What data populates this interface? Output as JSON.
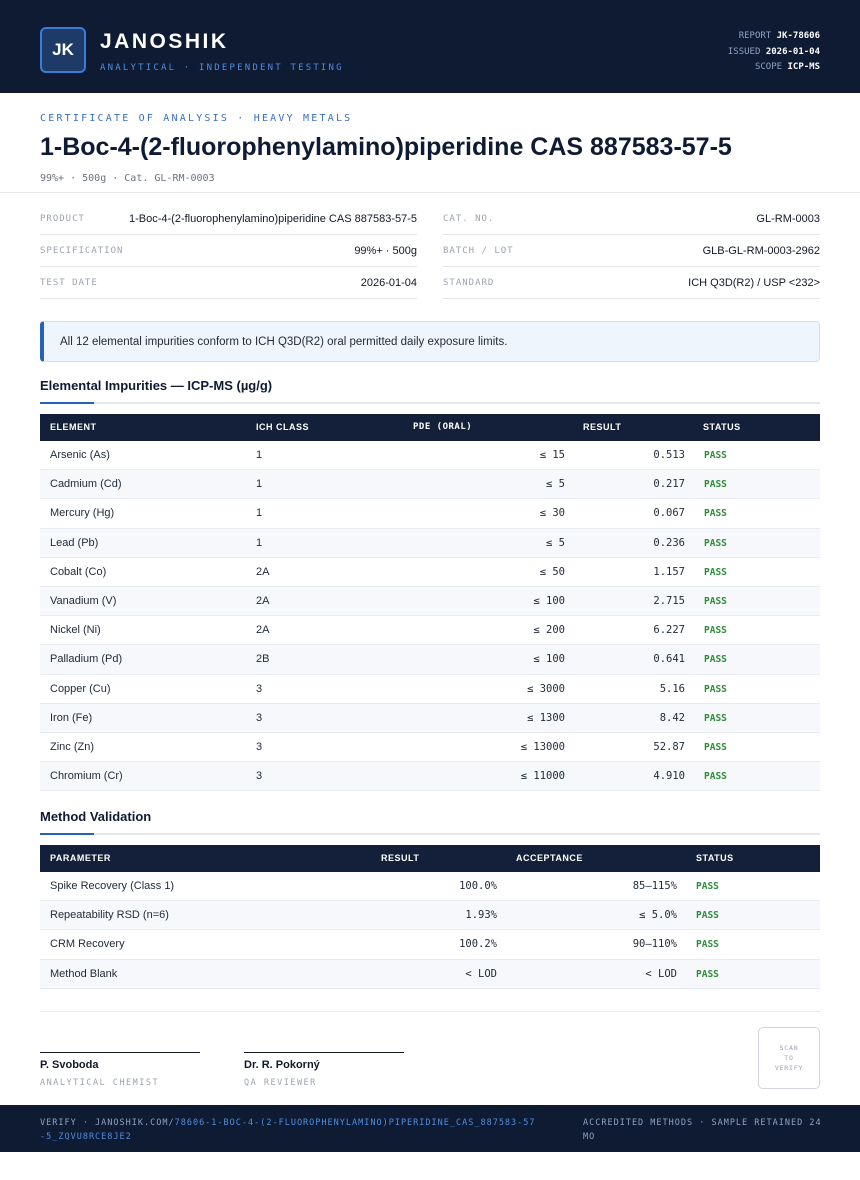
{
  "header": {
    "logo_text": "JK",
    "brand": "JANOSHIK",
    "tagline": "ANALYTICAL · INDEPENDENT TESTING",
    "report_label": "REPORT",
    "report_value": "JK-78606",
    "issued_label": "ISSUED",
    "issued_value": "2026-01-04",
    "scope_label": "SCOPE",
    "scope_value": "ICP-MS"
  },
  "title_block": {
    "kicker": "CERTIFICATE OF ANALYSIS · HEAVY METALS",
    "title": "1-Boc-4-(2-fluorophenylamino)piperidine CAS 887583-57-5",
    "subtitle": "99%+ · 500g  ·  Cat. GL-RM-0003"
  },
  "info": {
    "product_label": "PRODUCT",
    "product_value": "1-Boc-4-(2-fluorophenylamino)piperidine CAS 887583-57-5",
    "spec_label": "SPECIFICATION",
    "spec_value": "99%+ · 500g",
    "date_label": "TEST DATE",
    "date_value": "2026-01-04",
    "cat_label": "CAT. NO.",
    "cat_value": "GL-RM-0003",
    "batch_label": "BATCH / LOT",
    "batch_value": "GLB-GL-RM-0003-2962",
    "standard_label": "STANDARD",
    "standard_value": "ICH Q3D(R2) / USP <232>"
  },
  "notice": "All 12 elemental impurities conform to ICH Q3D(R2) oral permitted daily exposure limits.",
  "impurities": {
    "heading": "Elemental Impurities — ICP-MS (µg/g)",
    "columns": [
      "ELEMENT",
      "ICH CLASS",
      "PDE (ORAL)",
      "RESULT",
      "STATUS"
    ],
    "rows": [
      {
        "element": "Arsenic (As)",
        "class": "1",
        "pde": "≤ 15",
        "result": "0.513",
        "status": "PASS"
      },
      {
        "element": "Cadmium (Cd)",
        "class": "1",
        "pde": "≤ 5",
        "result": "0.217",
        "status": "PASS"
      },
      {
        "element": "Mercury (Hg)",
        "class": "1",
        "pde": "≤ 30",
        "result": "0.067",
        "status": "PASS"
      },
      {
        "element": "Lead (Pb)",
        "class": "1",
        "pde": "≤ 5",
        "result": "0.236",
        "status": "PASS"
      },
      {
        "element": "Cobalt (Co)",
        "class": "2A",
        "pde": "≤ 50",
        "result": "1.157",
        "status": "PASS"
      },
      {
        "element": "Vanadium (V)",
        "class": "2A",
        "pde": "≤ 100",
        "result": "2.715",
        "status": "PASS"
      },
      {
        "element": "Nickel (Ni)",
        "class": "2A",
        "pde": "≤ 200",
        "result": "6.227",
        "status": "PASS"
      },
      {
        "element": "Palladium (Pd)",
        "class": "2B",
        "pde": "≤ 100",
        "result": "0.641",
        "status": "PASS"
      },
      {
        "element": "Copper (Cu)",
        "class": "3",
        "pde": "≤ 3000",
        "result": "5.16",
        "status": "PASS"
      },
      {
        "element": "Iron (Fe)",
        "class": "3",
        "pde": "≤ 1300",
        "result": "8.42",
        "status": "PASS"
      },
      {
        "element": "Zinc (Zn)",
        "class": "3",
        "pde": "≤ 13000",
        "result": "52.87",
        "status": "PASS"
      },
      {
        "element": "Chromium (Cr)",
        "class": "3",
        "pde": "≤ 11000",
        "result": "4.910",
        "status": "PASS"
      }
    ]
  },
  "validation": {
    "heading": "Method Validation",
    "columns": [
      "PARAMETER",
      "RESULT",
      "ACCEPTANCE",
      "STATUS"
    ],
    "rows": [
      {
        "parameter": "Spike Recovery (Class 1)",
        "result": "100.0%",
        "acceptance": "85–115%",
        "status": "PASS"
      },
      {
        "parameter": "Repeatability RSD (n=6)",
        "result": "1.93%",
        "acceptance": "≤ 5.0%",
        "status": "PASS"
      },
      {
        "parameter": "CRM Recovery",
        "result": "100.2%",
        "acceptance": "90–110%",
        "status": "PASS"
      },
      {
        "parameter": "Method Blank",
        "result": "< LOD",
        "acceptance": "< LOD",
        "status": "PASS"
      }
    ]
  },
  "signatures": [
    {
      "name": "P. Svoboda",
      "role": "ANALYTICAL CHEMIST"
    },
    {
      "name": "Dr. R. Pokorný",
      "role": "QA REVIEWER"
    }
  ],
  "qr": {
    "line1": "SCAN",
    "line2": "TO",
    "line3": "VERIFY"
  },
  "footer": {
    "verify_prefix": "VERIFY · JANOSHIK.COM/",
    "verify_url": "78606-1-BOC-4-(2-FLUOROPHENYLAMINO)PIPERIDINE_CAS_887583-57-5_ZQVU8RCE8JE2",
    "right": "ACCREDITED METHODS · SAMPLE RETAINED 24 MO"
  },
  "colors": {
    "navy": "#0f1a33",
    "accent": "#2563b8",
    "pass": "#2e8b3a"
  }
}
